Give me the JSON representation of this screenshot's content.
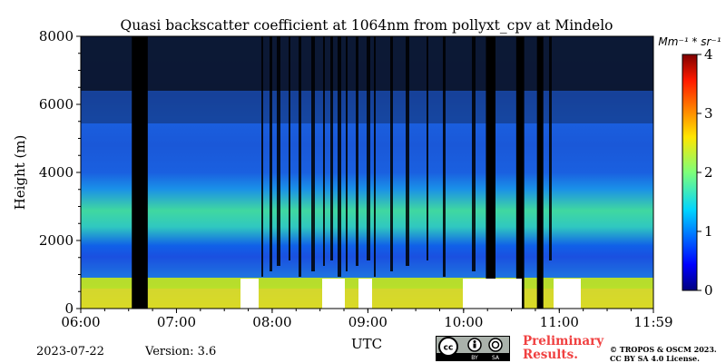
{
  "chart_data": {
    "type": "heatmap",
    "title": "Quasi backscatter coefficient at 1064nm from pollyxt_cpv at Mindelo",
    "xlabel": "UTC",
    "ylabel": "Height (m)",
    "x_range": [
      "06:00",
      "11:59"
    ],
    "x_ticks": [
      "06:00",
      "07:00",
      "08:00",
      "09:00",
      "10:00",
      "11:00",
      "11:59"
    ],
    "y_range": [
      0,
      8000
    ],
    "y_ticks": [
      "0",
      "2000",
      "4000",
      "6000",
      "8000"
    ],
    "colorbar": {
      "unit_label": "Mm⁻¹ * sr⁻¹",
      "range": [
        0,
        4
      ],
      "ticks": [
        "0",
        "1",
        "2",
        "3",
        "4"
      ],
      "colormap": "jet"
    },
    "no_signal_periods_utc": [
      [
        "06:32",
        "06:42"
      ],
      [
        "10:14",
        "10:20"
      ],
      [
        "10:33",
        "10:38"
      ],
      [
        "10:46",
        "10:50"
      ]
    ]
  },
  "footer": {
    "date": "2023-07-22",
    "version": "Version: 3.6",
    "license_badge": "cc-by-sa-badge",
    "preliminary_line1": "Preliminary",
    "preliminary_line2": "Results.",
    "copyright_line1": "© TROPOS & OSCM 2023.",
    "copyright_line2": "CC BY SA 4.0 License."
  }
}
